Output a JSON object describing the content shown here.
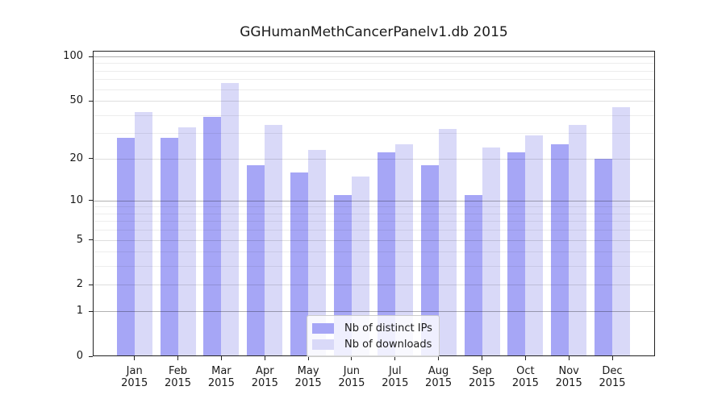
{
  "chart_data": {
    "type": "bar",
    "title": "GGHumanMethCancerPanelv1.db 2015",
    "year": "2015",
    "categories": [
      "Jan",
      "Feb",
      "Mar",
      "Apr",
      "May",
      "Jun",
      "Jul",
      "Aug",
      "Sep",
      "Oct",
      "Nov",
      "Dec"
    ],
    "series": [
      {
        "key": "ips",
        "name": "Nb of distinct IPs",
        "color": "#a6a6f6",
        "values": [
          28,
          28,
          39,
          18,
          16,
          11,
          22,
          18,
          11,
          22,
          25,
          20
        ]
      },
      {
        "key": "downloads",
        "name": "Nb of downloads",
        "color": "#d9d9f8",
        "values": [
          42,
          33,
          66,
          34,
          23,
          15,
          25,
          32,
          24,
          29,
          34,
          45
        ]
      }
    ],
    "y_axis": {
      "scale": "log10(1+y)",
      "ylim": [
        0,
        100
      ],
      "labeled_ticks": [
        0,
        1,
        2,
        5,
        10,
        20,
        50,
        100
      ],
      "emphasized_gridlines": [
        1,
        10,
        100
      ],
      "minor_gridlines": [
        3,
        4,
        6,
        7,
        8,
        9,
        30,
        40,
        60,
        70,
        80,
        90
      ]
    },
    "x_axis": {
      "tick_label_lines": [
        "month",
        "year"
      ]
    },
    "legend": {
      "position": "lower-center",
      "entries": [
        "Nb of distinct IPs",
        "Nb of downloads"
      ]
    },
    "grid": true,
    "background": "#ffffff",
    "frame_color": "#222222"
  }
}
